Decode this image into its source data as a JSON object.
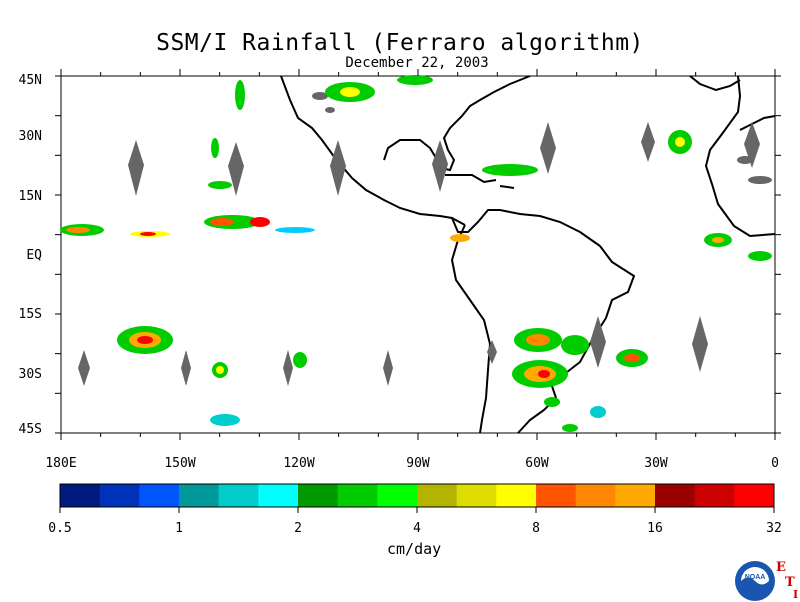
{
  "title": "SSM/I Rainfall (Ferraro algorithm)",
  "date": "December 22, 2003",
  "lat_labels": [
    "45N",
    "30N",
    "15N",
    "EQ",
    "15S",
    "30S",
    "45S"
  ],
  "lon_labels": [
    "180E",
    "150W",
    "120W",
    "90W",
    "60W",
    "30W",
    "0"
  ],
  "colorbar": {
    "colors": [
      "#001a80",
      "#0033bb",
      "#0055ff",
      "#009999",
      "#00cccc",
      "#00ffff",
      "#009900",
      "#00cc00",
      "#00ff00",
      "#b4b400",
      "#dddd00",
      "#ffff00",
      "#ff5500",
      "#ff8800",
      "#ffaa00",
      "#990000",
      "#cc0000",
      "#ff0000"
    ],
    "tick_labels": [
      "0.5",
      "1",
      "2",
      "4",
      "8",
      "16",
      "32"
    ],
    "units": "cm/day"
  },
  "logo": {
    "text": "NOAA",
    "side_letters": [
      "E",
      "T",
      "I"
    ]
  }
}
